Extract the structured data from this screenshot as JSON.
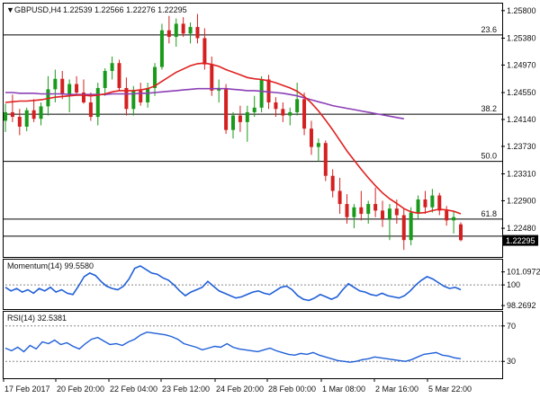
{
  "header": {
    "symbol": "GBPUSD,H4",
    "ohlc": "1.22539 1.22566 1.22276 1.22295"
  },
  "chart_data": [
    {
      "type": "candlestick",
      "name": "price",
      "ylim": [
        1.2207,
        1.2588
      ],
      "y_ticks": [
        "1.25800",
        "1.25380",
        "1.24970",
        "1.24550",
        "1.24140",
        "1.23730",
        "1.23310",
        "1.22900",
        "1.22480"
      ],
      "current_price": "1.22295",
      "fib_levels": [
        {
          "label": "23.6",
          "value": 1.2543
        },
        {
          "label": "38.2",
          "value": 1.2422
        },
        {
          "label": "50.0",
          "value": 1.235
        },
        {
          "label": "61.8",
          "value": 1.2262
        },
        {
          "label": "",
          "value": 1.2236
        }
      ],
      "candles": [
        [
          1.2412,
          1.2438,
          1.2395,
          1.2425
        ],
        [
          1.2425,
          1.2452,
          1.241,
          1.2418
        ],
        [
          1.2418,
          1.243,
          1.239,
          1.2403
        ],
        [
          1.2403,
          1.2432,
          1.2396,
          1.2428
        ],
        [
          1.2428,
          1.2445,
          1.241,
          1.2415
        ],
        [
          1.2415,
          1.244,
          1.2405,
          1.2434
        ],
        [
          1.2434,
          1.248,
          1.242,
          1.246
        ],
        [
          1.246,
          1.249,
          1.244,
          1.2476
        ],
        [
          1.2476,
          1.2488,
          1.2445,
          1.2452
        ],
        [
          1.2452,
          1.2475,
          1.2425,
          1.2468
        ],
        [
          1.2468,
          1.248,
          1.245,
          1.2455
        ],
        [
          1.2455,
          1.2475,
          1.2438,
          1.244
        ],
        [
          1.244,
          1.2455,
          1.2412,
          1.2418
        ],
        [
          1.2418,
          1.247,
          1.2405,
          1.2462
        ],
        [
          1.2462,
          1.2492,
          1.245,
          1.2488
        ],
        [
          1.2488,
          1.251,
          1.2475,
          1.25
        ],
        [
          1.25,
          1.2505,
          1.2458,
          1.2462
        ],
        [
          1.2462,
          1.2478,
          1.242,
          1.243
        ],
        [
          1.243,
          1.2465,
          1.242,
          1.2458
        ],
        [
          1.2458,
          1.247,
          1.2435,
          1.244
        ],
        [
          1.244,
          1.247,
          1.2432,
          1.2462
        ],
        [
          1.2462,
          1.25,
          1.245,
          1.2494
        ],
        [
          1.2494,
          1.256,
          1.249,
          1.255
        ],
        [
          1.255,
          1.2572,
          1.253,
          1.254
        ],
        [
          1.254,
          1.2568,
          1.2525,
          1.256
        ],
        [
          1.256,
          1.257,
          1.254,
          1.2545
        ],
        [
          1.2545,
          1.2562,
          1.253,
          1.2555
        ],
        [
          1.2555,
          1.2575,
          1.253,
          1.2538
        ],
        [
          1.2538,
          1.2553,
          1.249,
          1.2498
        ],
        [
          1.2498,
          1.251,
          1.245,
          1.2458
        ],
        [
          1.2458,
          1.2475,
          1.244,
          1.2462
        ],
        [
          1.2462,
          1.2468,
          1.2392,
          1.2398
        ],
        [
          1.2398,
          1.2425,
          1.2385,
          1.242
        ],
        [
          1.242,
          1.2435,
          1.2395,
          1.241
        ],
        [
          1.241,
          1.2435,
          1.238,
          1.2425
        ],
        [
          1.2425,
          1.245,
          1.2418,
          1.2432
        ],
        [
          1.2432,
          1.248,
          1.2425,
          1.2475
        ],
        [
          1.2475,
          1.2482,
          1.243,
          1.244
        ],
        [
          1.244,
          1.2448,
          1.2418,
          1.243
        ],
        [
          1.243,
          1.244,
          1.241,
          1.242
        ],
        [
          1.242,
          1.2432,
          1.2405,
          1.2425
        ],
        [
          1.2425,
          1.247,
          1.242,
          1.2445
        ],
        [
          1.2445,
          1.2455,
          1.239,
          1.24
        ],
        [
          1.24,
          1.2412,
          1.236,
          1.2372
        ],
        [
          1.2372,
          1.2385,
          1.235,
          1.2378
        ],
        [
          1.2378,
          1.2382,
          1.232,
          1.2328
        ],
        [
          1.2328,
          1.2338,
          1.2295,
          1.2305
        ],
        [
          1.2305,
          1.2325,
          1.227,
          1.2285
        ],
        [
          1.2285,
          1.23,
          1.2255,
          1.2265
        ],
        [
          1.2265,
          1.2285,
          1.2248,
          1.228
        ],
        [
          1.228,
          1.2305,
          1.226,
          1.227
        ],
        [
          1.227,
          1.229,
          1.2255,
          1.2285
        ],
        [
          1.2285,
          1.231,
          1.2265,
          1.2275
        ],
        [
          1.2275,
          1.229,
          1.225,
          1.2262
        ],
        [
          1.2262,
          1.2285,
          1.223,
          1.2278
        ],
        [
          1.2278,
          1.2292,
          1.2255,
          1.2268
        ],
        [
          1.2268,
          1.2278,
          1.2215,
          1.223
        ],
        [
          1.223,
          1.228,
          1.2222,
          1.2272
        ],
        [
          1.2272,
          1.2298,
          1.2262,
          1.2292
        ],
        [
          1.2292,
          1.2305,
          1.227,
          1.228
        ],
        [
          1.228,
          1.2308,
          1.2272,
          1.2298
        ],
        [
          1.2298,
          1.2302,
          1.2268,
          1.2275
        ],
        [
          1.2275,
          1.2282,
          1.2252,
          1.226
        ],
        [
          1.226,
          1.2275,
          1.224,
          1.2265
        ],
        [
          1.2254,
          1.2257,
          1.2228,
          1.223
        ]
      ],
      "red_ma": [
        1.244,
        1.2441,
        1.2442,
        1.2442,
        1.2443,
        1.2444,
        1.2446,
        1.2448,
        1.2449,
        1.245,
        1.2451,
        1.2451,
        1.245,
        1.2451,
        1.2453,
        1.2456,
        1.2458,
        1.2458,
        1.2458,
        1.2459,
        1.2461,
        1.2465,
        1.2472,
        1.2479,
        1.2486,
        1.2491,
        1.2496,
        1.2499,
        1.25,
        1.2498,
        1.2495,
        1.249,
        1.2486,
        1.2482,
        1.2478,
        1.2476,
        1.2475,
        1.2473,
        1.247,
        1.2466,
        1.2462,
        1.2457,
        1.2449,
        1.2439,
        1.2427,
        1.2413,
        1.2398,
        1.2382,
        1.2366,
        1.2352,
        1.2338,
        1.2325,
        1.2313,
        1.2302,
        1.2293,
        1.2286,
        1.2278,
        1.2273,
        1.2271,
        1.2272,
        1.2275,
        1.2277,
        1.2276,
        1.2274,
        1.227
      ],
      "purple_ma": [
        1.2455,
        1.2455,
        1.2454,
        1.2454,
        1.2454,
        1.2453,
        1.2453,
        1.2453,
        1.2453,
        1.2452,
        1.2452,
        1.2452,
        1.2452,
        1.2452,
        1.2452,
        1.2453,
        1.2453,
        1.2453,
        1.2453,
        1.2454,
        1.2454,
        1.2455,
        1.2456,
        1.2457,
        1.2458,
        1.2459,
        1.246,
        1.2461,
        1.2461,
        1.2461,
        1.2461,
        1.2461,
        1.246,
        1.2459,
        1.2458,
        1.2458,
        1.2457,
        1.2456,
        1.2455,
        1.2454,
        1.2452,
        1.245,
        1.2447,
        1.2444,
        1.2441,
        1.2438,
        1.2435,
        1.2433,
        1.2431,
        1.2429,
        1.2427,
        1.2425,
        1.2423,
        1.2421,
        1.2419,
        1.2417,
        1.2415
      ]
    },
    {
      "type": "line",
      "name": "Momentum(14)",
      "label": "Momentum(14) 99.5580",
      "ylim": [
        98.05,
        102.05
      ],
      "y_ticks": [
        {
          "label": "101.0972",
          "value": 101.0972
        },
        {
          "label": "100",
          "value": 100
        },
        {
          "label": "98.2692",
          "value": 98.2692
        }
      ],
      "level": 100,
      "values": [
        99.8,
        99.5,
        99.7,
        99.4,
        99.6,
        99.3,
        99.7,
        99.5,
        99.8,
        99.4,
        99.6,
        99.3,
        99.2,
        99.9,
        100.7,
        101.0,
        100.8,
        100.3,
        99.9,
        99.7,
        99.6,
        99.9,
        100.5,
        101.4,
        101.6,
        101.3,
        101.0,
        100.9,
        100.6,
        100.4,
        100.0,
        99.5,
        99.1,
        99.4,
        99.6,
        99.8,
        100.3,
        99.9,
        99.5,
        99.3,
        99.1,
        98.9,
        99.0,
        99.2,
        99.4,
        99.5,
        99.3,
        99.2,
        99.5,
        99.8,
        99.9,
        99.6,
        99.1,
        98.8,
        98.7,
        98.9,
        99.2,
        99.0,
        98.8,
        99.0,
        99.6,
        100.1,
        99.8,
        99.5,
        99.4,
        99.2,
        99.1,
        99.3,
        99.1,
        99.0,
        98.9,
        99.1,
        99.5,
        100.0,
        100.4,
        100.7,
        100.5,
        100.2,
        99.9,
        99.7,
        99.8,
        99.6
      ]
    },
    {
      "type": "line",
      "name": "RSI(14)",
      "label": "RSI(14) 32.5381",
      "ylim": [
        12,
        85
      ],
      "y_ticks": [
        {
          "label": "70",
          "value": 70
        },
        {
          "label": "30",
          "value": 30
        }
      ],
      "levels": [
        70,
        30
      ],
      "values": [
        45,
        42,
        46,
        41,
        48,
        44,
        52,
        50,
        54,
        49,
        51,
        47,
        44,
        50,
        55,
        57,
        53,
        49,
        50,
        48,
        52,
        55,
        60,
        63,
        62,
        61,
        60,
        58,
        55,
        50,
        48,
        46,
        43,
        45,
        47,
        46,
        50,
        46,
        44,
        43,
        42,
        41,
        43,
        45,
        42,
        40,
        38,
        37,
        39,
        38,
        40,
        37,
        35,
        33,
        31,
        30,
        29,
        30,
        32,
        33,
        35,
        34,
        33,
        32,
        31,
        30,
        32,
        35,
        38,
        39,
        40,
        37,
        36,
        34,
        33
      ]
    }
  ],
  "x_axis": {
    "tick_labels": [
      "17 Feb 2017",
      "20 Feb 20:00",
      "22 Feb 04:00",
      "23 Feb 12:00",
      "24 Feb 20:00",
      "28 Feb 00:00",
      "1 Mar 08:00",
      "2 Mar 16:00",
      "5 Mar 22:00"
    ]
  },
  "colors": {
    "bull": "#1a9a1a",
    "bear": "#d42020",
    "red_ma": "#e02020",
    "purple_ma": "#8b3fb5",
    "indicator_line": "#1f5fd8",
    "price_tag_bg": "#000000",
    "price_tag_fg": "#ffffff"
  }
}
